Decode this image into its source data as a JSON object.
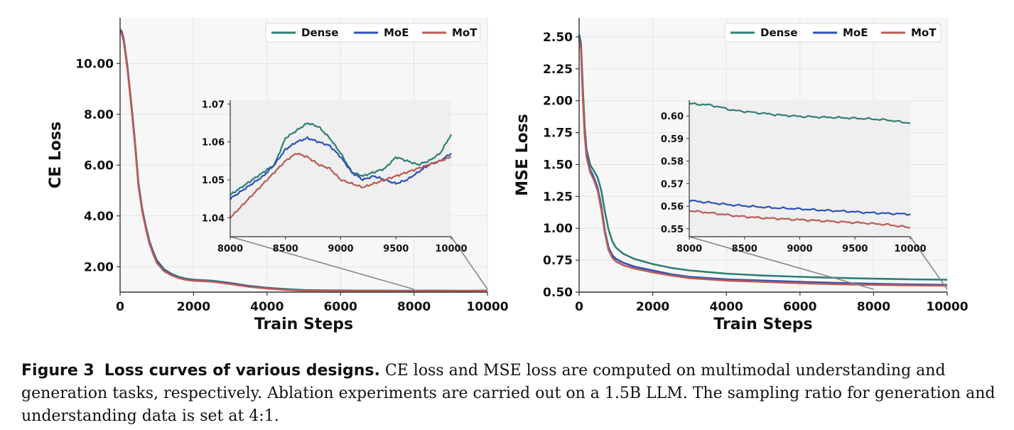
{
  "chart_data": [
    {
      "type": "line",
      "ylabel": "CE Loss",
      "xlabel": "Train Steps",
      "xlim": [
        0,
        10000
      ],
      "ylim": [
        1.0,
        11.8
      ],
      "xticks": [
        0,
        2000,
        4000,
        6000,
        8000,
        10000
      ],
      "xtick_labels": [
        "0",
        "2000",
        "4000",
        "6000",
        "8000",
        "10000"
      ],
      "yticks": [
        2,
        4,
        6,
        8,
        10
      ],
      "ytick_labels": [
        "2.00",
        "4.00",
        "6.00",
        "8.00",
        "10.00"
      ],
      "grid": true,
      "legend": "top-right",
      "x": [
        0,
        50,
        100,
        200,
        300,
        400,
        500,
        600,
        700,
        800,
        900,
        1000,
        1200,
        1400,
        1600,
        1800,
        2000,
        2500,
        3000,
        3500,
        4000,
        4500,
        5000,
        5500,
        6000,
        6500,
        7000,
        7500,
        8000,
        8500,
        9000,
        9500,
        10000
      ],
      "series": [
        {
          "name": "Dense",
          "color": "#2e8075",
          "values": [
            11.35,
            11.25,
            10.95,
            9.9,
            8.5,
            7.0,
            5.3,
            4.3,
            3.6,
            3.0,
            2.6,
            2.25,
            1.9,
            1.72,
            1.6,
            1.53,
            1.49,
            1.45,
            1.36,
            1.25,
            1.17,
            1.12,
            1.08,
            1.07,
            1.07,
            1.06,
            1.06,
            1.055,
            1.055,
            1.06,
            1.055,
            1.05,
            1.06
          ]
        },
        {
          "name": "MoE",
          "color": "#2c53b8",
          "values": [
            11.3,
            11.2,
            10.9,
            9.85,
            8.45,
            6.95,
            5.25,
            4.25,
            3.55,
            2.95,
            2.55,
            2.2,
            1.86,
            1.69,
            1.57,
            1.5,
            1.47,
            1.43,
            1.34,
            1.23,
            1.15,
            1.1,
            1.07,
            1.065,
            1.06,
            1.055,
            1.055,
            1.05,
            1.05,
            1.06,
            1.05,
            1.048,
            1.056
          ]
        },
        {
          "name": "MoT",
          "color": "#bd5a55",
          "values": [
            11.25,
            11.15,
            10.85,
            9.8,
            8.4,
            6.9,
            5.2,
            4.2,
            3.5,
            2.9,
            2.5,
            2.15,
            1.82,
            1.66,
            1.55,
            1.48,
            1.45,
            1.41,
            1.32,
            1.21,
            1.14,
            1.09,
            1.06,
            1.058,
            1.055,
            1.05,
            1.05,
            1.048,
            1.045,
            1.055,
            1.048,
            1.05,
            1.055
          ]
        }
      ],
      "inset": {
        "xlim": [
          8000,
          10000
        ],
        "ylim": [
          1.035,
          1.071
        ],
        "xticks": [
          8000,
          8500,
          9000,
          9500,
          10000
        ],
        "xtick_labels": [
          "8000",
          "8500",
          "9000",
          "9500",
          "10000"
        ],
        "yticks": [
          1.04,
          1.05,
          1.06,
          1.07
        ],
        "ytick_labels": [
          "1.04",
          "1.05",
          "1.06",
          "1.07"
        ],
        "x": [
          8000,
          8100,
          8200,
          8300,
          8400,
          8500,
          8600,
          8700,
          8800,
          8900,
          9000,
          9100,
          9200,
          9300,
          9400,
          9500,
          9600,
          9700,
          9800,
          9900,
          10000
        ],
        "series": [
          {
            "name": "Dense",
            "values": [
              1.046,
              1.048,
              1.05,
              1.052,
              1.054,
              1.061,
              1.063,
              1.065,
              1.064,
              1.061,
              1.057,
              1.052,
              1.051,
              1.052,
              1.053,
              1.056,
              1.055,
              1.054,
              1.055,
              1.057,
              1.062
            ]
          },
          {
            "name": "MoE",
            "values": [
              1.045,
              1.047,
              1.049,
              1.051,
              1.054,
              1.058,
              1.06,
              1.061,
              1.06,
              1.059,
              1.056,
              1.052,
              1.05,
              1.051,
              1.05,
              1.049,
              1.05,
              1.052,
              1.054,
              1.055,
              1.057
            ]
          },
          {
            "name": "MoT",
            "values": [
              1.04,
              1.043,
              1.046,
              1.049,
              1.052,
              1.055,
              1.057,
              1.056,
              1.054,
              1.053,
              1.05,
              1.049,
              1.048,
              1.049,
              1.05,
              1.051,
              1.052,
              1.053,
              1.054,
              1.055,
              1.056
            ]
          }
        ]
      }
    },
    {
      "type": "line",
      "ylabel": "MSE Loss",
      "xlabel": "Train Steps",
      "xlim": [
        0,
        10000
      ],
      "ylim": [
        0.5,
        2.65
      ],
      "xticks": [
        0,
        2000,
        4000,
        6000,
        8000,
        10000
      ],
      "xtick_labels": [
        "0",
        "2000",
        "4000",
        "6000",
        "8000",
        "10000"
      ],
      "yticks": [
        0.5,
        0.75,
        1.0,
        1.25,
        1.5,
        1.75,
        2.0,
        2.25,
        2.5
      ],
      "ytick_labels": [
        "0.50",
        "0.75",
        "1.00",
        "1.25",
        "1.50",
        "1.75",
        "2.00",
        "2.25",
        "2.50"
      ],
      "grid": true,
      "legend": "top-right",
      "x": [
        0,
        50,
        100,
        150,
        200,
        300,
        400,
        500,
        600,
        700,
        800,
        900,
        1000,
        1200,
        1500,
        2000,
        2500,
        3000,
        4000,
        5000,
        6000,
        7000,
        8000,
        9000,
        10000
      ],
      "series": [
        {
          "name": "Dense",
          "color": "#2e8075",
          "values": [
            2.52,
            2.45,
            2.1,
            1.8,
            1.62,
            1.5,
            1.45,
            1.4,
            1.3,
            1.13,
            0.99,
            0.9,
            0.85,
            0.8,
            0.76,
            0.72,
            0.69,
            0.67,
            0.645,
            0.63,
            0.62,
            0.612,
            0.605,
            0.6,
            0.597
          ]
        },
        {
          "name": "MoE",
          "color": "#2c53b8",
          "values": [
            2.5,
            2.42,
            2.05,
            1.75,
            1.58,
            1.46,
            1.4,
            1.32,
            1.18,
            0.98,
            0.85,
            0.79,
            0.76,
            0.73,
            0.7,
            0.67,
            0.64,
            0.62,
            0.6,
            0.59,
            0.58,
            0.572,
            0.565,
            0.56,
            0.557
          ]
        },
        {
          "name": "MoT",
          "color": "#bd5a55",
          "values": [
            2.48,
            2.4,
            2.03,
            1.73,
            1.56,
            1.44,
            1.38,
            1.3,
            1.15,
            0.96,
            0.83,
            0.77,
            0.74,
            0.71,
            0.685,
            0.655,
            0.63,
            0.61,
            0.59,
            0.58,
            0.57,
            0.562,
            0.557,
            0.553,
            0.55
          ]
        }
      ],
      "inset": {
        "xlim": [
          8000,
          10000
        ],
        "ylim": [
          0.5465,
          0.607
        ],
        "xticks": [
          8000,
          8500,
          9000,
          9500,
          10000
        ],
        "xtick_labels": [
          "8000",
          "8500",
          "9000",
          "9500",
          "10000"
        ],
        "yticks": [
          0.55,
          0.56,
          0.57,
          0.58,
          0.59,
          0.6
        ],
        "ytick_labels": [
          "0.55",
          "0.56",
          "0.57",
          "0.58",
          "0.59",
          "0.60"
        ],
        "x": [
          8000,
          8200,
          8400,
          8600,
          8800,
          9000,
          9200,
          9400,
          9600,
          9800,
          10000
        ],
        "series": [
          {
            "name": "Dense",
            "values": [
              0.6055,
              0.6048,
              0.6025,
              0.6015,
              0.6005,
              0.5998,
              0.5995,
              0.5992,
              0.5988,
              0.5982,
              0.5968
            ]
          },
          {
            "name": "MoE",
            "values": [
              0.5625,
              0.5615,
              0.5605,
              0.5598,
              0.5592,
              0.5588,
              0.5582,
              0.5578,
              0.5572,
              0.5568,
              0.5565
            ]
          },
          {
            "name": "MoT",
            "values": [
              0.558,
              0.557,
              0.5558,
              0.555,
              0.5545,
              0.554,
              0.5535,
              0.553,
              0.5525,
              0.5518,
              0.5505
            ]
          }
        ]
      }
    }
  ],
  "caption": {
    "label": "Figure 3",
    "title": "Loss curves of various designs.",
    "text": "CE loss and MSE loss are computed on multimodal understanding and generation tasks, respectively. Ablation experiments are carried out on a 1.5B LLM. The sampling ratio for generation and understanding data is set at 4:1."
  }
}
